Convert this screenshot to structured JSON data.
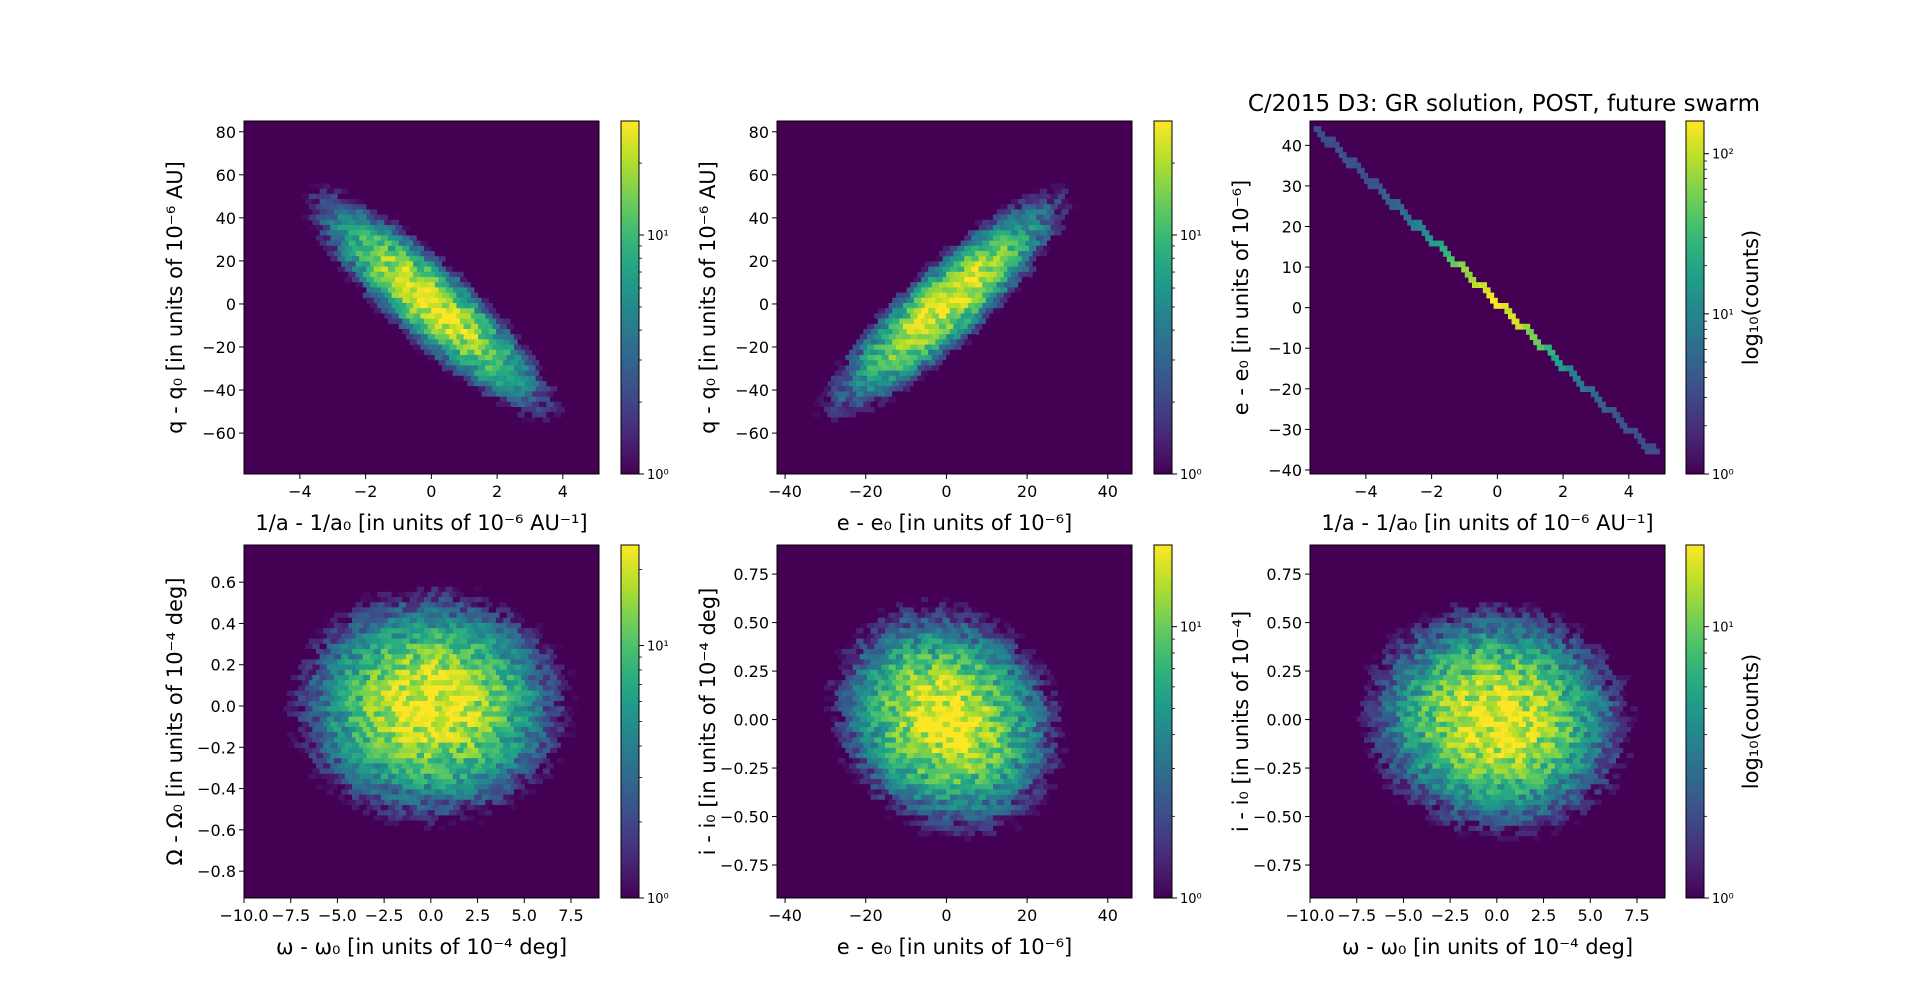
{
  "figure": {
    "title": "C/2015 D3: GR solution, POST, future swarm"
  },
  "colormap": [
    "#440154",
    "#482878",
    "#3e4a89",
    "#31688e",
    "#26828e",
    "#1f9e89",
    "#35b779",
    "#6ece58",
    "#b5de2b",
    "#fde725"
  ],
  "chart_data": [
    {
      "type": "heatmap",
      "xlabel": "1/a - 1/a₀ [in units of 10⁻⁶ AU⁻¹]",
      "ylabel": "q - q₀ [in units of 10⁻⁶ AU]",
      "xlim": [
        -5.7,
        5.1
      ],
      "ylim": [
        -79,
        85
      ],
      "xticks": [
        -4,
        -2,
        0,
        2,
        4
      ],
      "xtick_labels": [
        "−4",
        "−2",
        "0",
        "2",
        "4"
      ],
      "yticks": [
        -60,
        -40,
        -20,
        0,
        20,
        40,
        60,
        80
      ],
      "ytick_labels": [
        "−60",
        "−40",
        "−20",
        "0",
        "20",
        "40",
        "60",
        "80"
      ],
      "distribution": {
        "mean": [
          0,
          0
        ],
        "std": [
          1.5,
          21
        ],
        "corr": -0.88
      },
      "colorbar": {
        "scale": "log",
        "min": 1,
        "max": 30,
        "ticks": [
          1,
          10
        ],
        "tick_labels": [
          "10⁰",
          "10¹"
        ],
        "label": ""
      }
    },
    {
      "type": "heatmap",
      "xlabel": "e - e₀ [in units of 10⁻⁶]",
      "ylabel": "q - q₀ [in units of 10⁻⁶ AU]",
      "xlim": [
        -42,
        46
      ],
      "ylim": [
        -79,
        85
      ],
      "xticks": [
        -40,
        -20,
        0,
        20,
        40
      ],
      "xtick_labels": [
        "−40",
        "−20",
        "0",
        "20",
        "40"
      ],
      "yticks": [
        -60,
        -40,
        -20,
        0,
        20,
        40,
        60,
        80
      ],
      "ytick_labels": [
        "−60",
        "−40",
        "−20",
        "0",
        "20",
        "40",
        "60",
        "80"
      ],
      "distribution": {
        "mean": [
          0,
          0
        ],
        "std": [
          12,
          21
        ],
        "corr": 0.88
      },
      "colorbar": {
        "scale": "log",
        "min": 1,
        "max": 30,
        "ticks": [
          1,
          10
        ],
        "tick_labels": [
          "10⁰",
          "10¹"
        ],
        "label": ""
      }
    },
    {
      "type": "heatmap",
      "xlabel": "1/a - 1/a₀ [in units of 10⁻⁶ AU⁻¹]",
      "ylabel": "e - e₀ [in units of 10⁻⁶]",
      "xlim": [
        -5.7,
        5.1
      ],
      "ylim": [
        -41,
        46
      ],
      "xticks": [
        -4,
        -2,
        0,
        2,
        4
      ],
      "xtick_labels": [
        "−4",
        "−2",
        "0",
        "2",
        "4"
      ],
      "yticks": [
        -40,
        -30,
        -20,
        -10,
        0,
        10,
        20,
        30,
        40
      ],
      "ytick_labels": [
        "−40",
        "−30",
        "−20",
        "−10",
        "0",
        "10",
        "20",
        "30",
        "40"
      ],
      "line": {
        "from": [
          -5.5,
          44
        ],
        "to": [
          4.8,
          -36
        ]
      },
      "distribution": {
        "mean": [
          0,
          0
        ],
        "std": [
          1.5,
          11.5
        ],
        "corr": -1.0
      },
      "colorbar": {
        "scale": "log",
        "min": 1,
        "max": 160,
        "ticks": [
          1,
          10,
          100
        ],
        "tick_labels": [
          "10⁰",
          "10¹",
          "10²"
        ],
        "label": "log₁₀(counts)"
      }
    },
    {
      "type": "heatmap",
      "xlabel": "ω - ω₀ [in units of 10⁻⁴ deg]",
      "ylabel": "Ω - Ω₀ [in units of 10⁻⁴ deg]",
      "xlim": [
        -10,
        9
      ],
      "ylim": [
        -0.93,
        0.78
      ],
      "xticks": [
        -10,
        -7.5,
        -5,
        -2.5,
        0,
        2.5,
        5,
        7.5
      ],
      "xtick_labels": [
        "−10.0",
        "−7.5",
        "−5.0",
        "−2.5",
        "0.0",
        "2.5",
        "5.0",
        "7.5"
      ],
      "yticks": [
        -0.8,
        -0.6,
        -0.4,
        -0.2,
        0,
        0.2,
        0.4,
        0.6
      ],
      "ytick_labels": [
        "−0.8",
        "−0.6",
        "−0.4",
        "−0.2",
        "0.0",
        "0.2",
        "0.4",
        "0.6"
      ],
      "distribution": {
        "mean": [
          0,
          0
        ],
        "std": [
          3,
          0.23
        ],
        "corr": 0.0
      },
      "colorbar": {
        "scale": "log",
        "min": 1,
        "max": 25,
        "ticks": [
          1,
          10
        ],
        "tick_labels": [
          "10⁰",
          "10¹"
        ],
        "label": ""
      }
    },
    {
      "type": "heatmap",
      "xlabel": "e - e₀ [in units of 10⁻⁶]",
      "ylabel": "i - i₀ [in units of 10⁻⁴ deg]",
      "xlim": [
        -42,
        46
      ],
      "ylim": [
        -0.92,
        0.9
      ],
      "xticks": [
        -40,
        -20,
        0,
        20,
        40
      ],
      "xtick_labels": [
        "−40",
        "−20",
        "0",
        "20",
        "40"
      ],
      "yticks": [
        -0.75,
        -0.5,
        -0.25,
        0,
        0.25,
        0.5,
        0.75
      ],
      "ytick_labels": [
        "−0.75",
        "−0.50",
        "−0.25",
        "0.00",
        "0.25",
        "0.50",
        "0.75"
      ],
      "distribution": {
        "mean": [
          0,
          0
        ],
        "std": [
          12,
          0.25
        ],
        "corr": -0.15
      },
      "colorbar": {
        "scale": "log",
        "min": 1,
        "max": 20,
        "ticks": [
          1,
          10
        ],
        "tick_labels": [
          "10⁰",
          "10¹"
        ],
        "label": ""
      }
    },
    {
      "type": "heatmap",
      "xlabel": "ω - ω₀ [in units of 10⁻⁴ deg]",
      "ylabel": "i - i₀ [in units of 10⁻⁴]",
      "xlim": [
        -10,
        9
      ],
      "ylim": [
        -0.92,
        0.9
      ],
      "xticks": [
        -10,
        -7.5,
        -5,
        -2.5,
        0,
        2.5,
        5,
        7.5
      ],
      "xtick_labels": [
        "−10.0",
        "−7.5",
        "−5.0",
        "−2.5",
        "0.0",
        "2.5",
        "5.0",
        "7.5"
      ],
      "yticks": [
        -0.75,
        -0.5,
        -0.25,
        0,
        0.25,
        0.5,
        0.75
      ],
      "ytick_labels": [
        "−0.75",
        "−0.50",
        "−0.25",
        "0.00",
        "0.25",
        "0.50",
        "0.75"
      ],
      "distribution": {
        "mean": [
          0,
          0
        ],
        "std": [
          3,
          0.25
        ],
        "corr": -0.05
      },
      "colorbar": {
        "scale": "log",
        "min": 1,
        "max": 20,
        "ticks": [
          1,
          10
        ],
        "tick_labels": [
          "10⁰",
          "10¹"
        ],
        "label": "log₁₀(counts)"
      }
    }
  ]
}
